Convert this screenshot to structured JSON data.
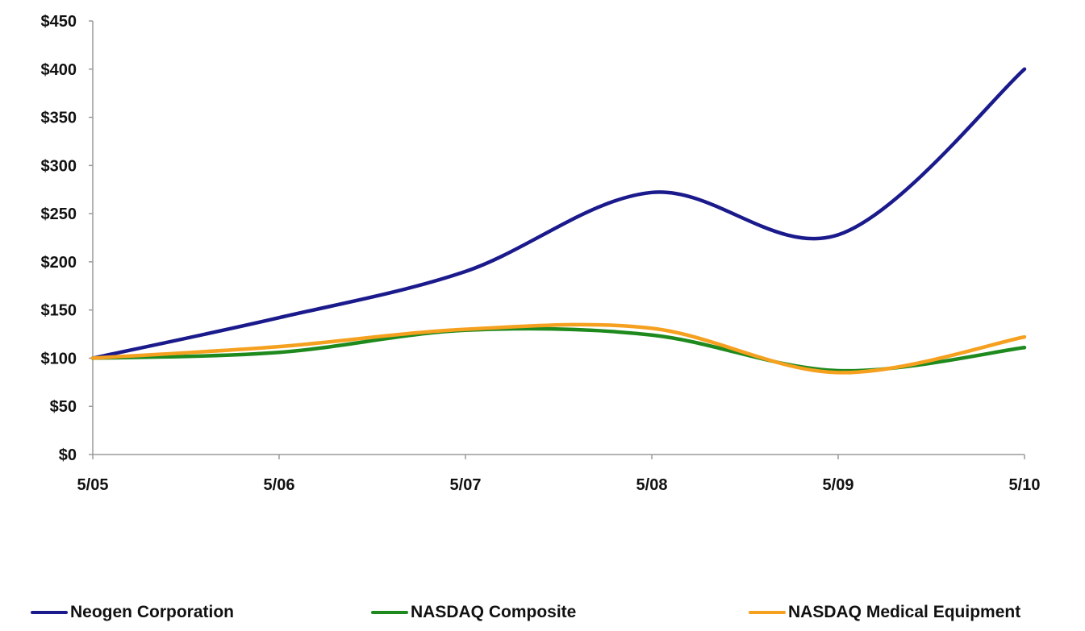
{
  "chart_data": {
    "type": "line",
    "title": "",
    "xlabel": "",
    "ylabel": "",
    "categories": [
      "5/05",
      "5/06",
      "5/07",
      "5/08",
      "5/09",
      "5/10"
    ],
    "ylim": [
      0,
      450
    ],
    "y_ticks": [
      "$0",
      "$50",
      "$100",
      "$150",
      "$200",
      "$250",
      "$300",
      "$350",
      "$400",
      "$450"
    ],
    "grid": false,
    "legend_position": "bottom",
    "series": [
      {
        "name": "Neogen Corporation",
        "color": "#1a1a8c",
        "values": [
          100,
          142,
          190,
          272,
          228,
          400
        ]
      },
      {
        "name": "NASDAQ Composite",
        "color": "#1e8a1e",
        "values": [
          100,
          106,
          129,
          124,
          87,
          111
        ]
      },
      {
        "name": "NASDAQ Medical Equipment",
        "color": "#f5a01e",
        "values": [
          100,
          112,
          130,
          131,
          85,
          122
        ]
      }
    ]
  }
}
